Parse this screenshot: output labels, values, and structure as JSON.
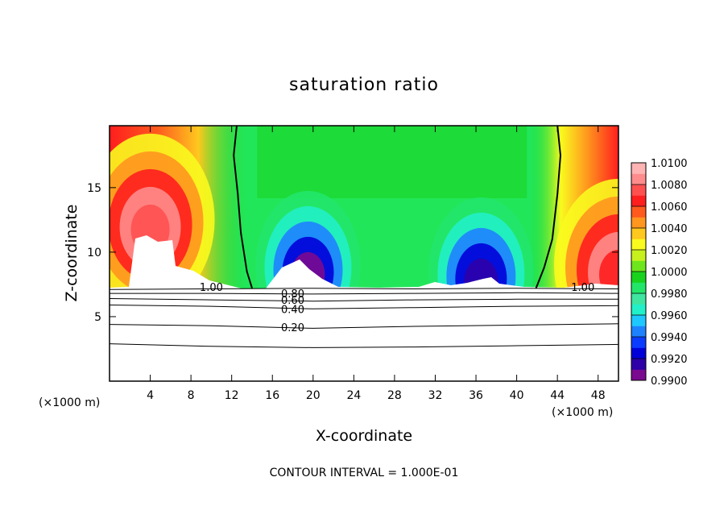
{
  "chart_data": {
    "type": "heatmap",
    "title": "saturation ratio",
    "xlabel": "X-coordinate",
    "ylabel": "Z-coordinate",
    "x_unit_label": "(×1000 m)",
    "z_unit_label": "(×1000 m)",
    "xlim": [
      0,
      50
    ],
    "ylim": [
      0,
      19.8
    ],
    "x_ticks": [
      4,
      8,
      12,
      16,
      20,
      24,
      28,
      32,
      36,
      40,
      44,
      48
    ],
    "y_ticks": [
      5,
      10,
      15
    ],
    "footer": "CONTOUR INTERVAL = 1.000E-01",
    "colorbar": {
      "min": 0.99,
      "max": 1.01,
      "labels": [
        "1.0100",
        "1.0080",
        "1.0060",
        "1.0040",
        "1.0020",
        "1.0000",
        "0.9980",
        "0.9960",
        "0.9940",
        "0.9920",
        "0.9900"
      ],
      "colors": [
        "#7a0a8f",
        "#2d00a8",
        "#0000d8",
        "#0a3cff",
        "#1e82ff",
        "#1ec8ff",
        "#22f0c8",
        "#3ee6a0",
        "#22e66a",
        "#19d21e",
        "#6ee61e",
        "#c6f01e",
        "#fafa1e",
        "#ffc81e",
        "#ff961e",
        "#ff5a1e",
        "#ff1e1e",
        "#ff5050",
        "#ff8c8c",
        "#ffb4b4"
      ]
    },
    "saturation_one_contours": [
      {
        "label": "1.00",
        "points": [
          [
            12.5,
            19.8
          ],
          [
            12.2,
            17.5
          ],
          [
            12.6,
            14.5
          ],
          [
            12.9,
            11.5
          ],
          [
            13.5,
            8.5
          ],
          [
            14.0,
            7.2
          ]
        ]
      },
      {
        "label": "1.00",
        "points": [
          [
            44.0,
            19.8
          ],
          [
            44.3,
            17.5
          ],
          [
            44.0,
            14.5
          ],
          [
            43.5,
            11.0
          ],
          [
            42.7,
            8.8
          ],
          [
            41.9,
            7.2
          ]
        ]
      }
    ],
    "lower_contours": [
      {
        "label": "",
        "points": [
          [
            0,
            7.1
          ],
          [
            10,
            7.15
          ],
          [
            20,
            7.2
          ],
          [
            30,
            7.15
          ],
          [
            40,
            7.2
          ],
          [
            50,
            7.15
          ]
        ]
      },
      {
        "label": "0.80",
        "points": [
          [
            0,
            6.8
          ],
          [
            10,
            6.8
          ],
          [
            20,
            6.75
          ],
          [
            30,
            6.8
          ],
          [
            40,
            6.85
          ],
          [
            50,
            6.8
          ]
        ]
      },
      {
        "label": "0.60",
        "points": [
          [
            0,
            6.4
          ],
          [
            10,
            6.3
          ],
          [
            20,
            6.2
          ],
          [
            30,
            6.3
          ],
          [
            40,
            6.35
          ],
          [
            50,
            6.35
          ]
        ]
      },
      {
        "label": "0.40",
        "points": [
          [
            0,
            5.9
          ],
          [
            10,
            5.8
          ],
          [
            20,
            5.6
          ],
          [
            30,
            5.7
          ],
          [
            40,
            5.8
          ],
          [
            50,
            5.85
          ]
        ]
      },
      {
        "label": "0.20",
        "points": [
          [
            0,
            4.4
          ],
          [
            10,
            4.3
          ],
          [
            20,
            4.1
          ],
          [
            30,
            4.25
          ],
          [
            40,
            4.35
          ],
          [
            50,
            4.45
          ]
        ]
      },
      {
        "label": "",
        "points": [
          [
            0,
            2.9
          ],
          [
            10,
            2.7
          ],
          [
            20,
            2.6
          ],
          [
            30,
            2.65
          ],
          [
            40,
            2.75
          ],
          [
            50,
            2.85
          ]
        ]
      }
    ],
    "field_features": [
      {
        "kind": "peak",
        "x": 4.0,
        "z": 12.5,
        "value": 1.0075
      },
      {
        "kind": "peak",
        "x": 50.0,
        "z": 9.0,
        "value": 1.007
      },
      {
        "kind": "trough",
        "x": 19.5,
        "z": 9.0,
        "value": 0.9905
      },
      {
        "kind": "trough",
        "x": 36.5,
        "z": 8.5,
        "value": 0.9915
      }
    ]
  }
}
